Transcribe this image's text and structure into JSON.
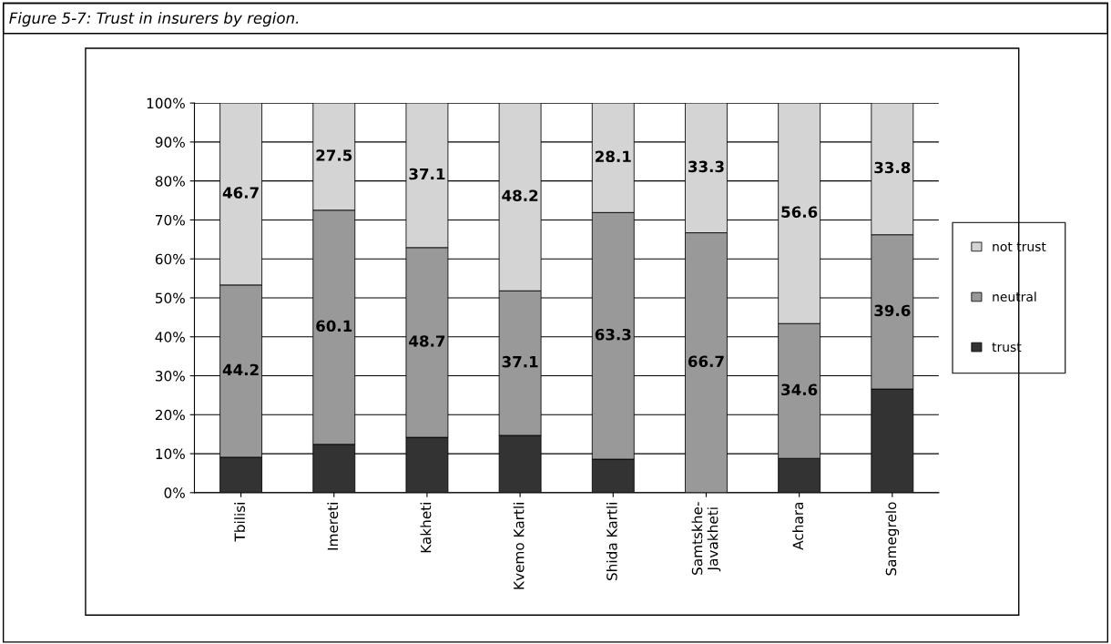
{
  "chart_data": {
    "type": "bar",
    "title": "Figure 5-7: Trust in insurers by region.",
    "stacked": true,
    "categories": [
      "Tbilisi",
      "Imereti",
      "Kakheti",
      "Kvemo Kartli",
      "Shida Kartli",
      "Samtskhe-\nJavakheti",
      "Achara",
      "Samegrelo"
    ],
    "series": [
      {
        "name": "trust",
        "color": "#333333",
        "values": [
          9.1,
          12.4,
          14.2,
          14.7,
          8.6,
          0,
          8.8,
          26.6
        ]
      },
      {
        "name": "neutral",
        "color": "#999999",
        "values": [
          44.2,
          60.1,
          48.7,
          37.1,
          63.3,
          66.7,
          34.6,
          39.6
        ],
        "value_labels": [
          "44.2",
          "60.1",
          "48.7",
          "37.1",
          "63.3",
          "66.7",
          "34.6",
          "39.6"
        ]
      },
      {
        "name": "not trust",
        "color": "#d4d4d4",
        "values": [
          46.7,
          27.5,
          37.1,
          48.2,
          28.1,
          33.3,
          56.6,
          33.8
        ],
        "value_labels": [
          "46.7",
          "27.5",
          "37.1",
          "48.2",
          "28.1",
          "33.3",
          "56.6",
          "33.8"
        ]
      }
    ],
    "ylim": [
      0,
      100
    ],
    "yticks": [
      {
        "value": 0,
        "label": "0%"
      },
      {
        "value": 10,
        "label": "10%"
      },
      {
        "value": 20,
        "label": "20%"
      },
      {
        "value": 30,
        "label": "30%"
      },
      {
        "value": 40,
        "label": "40%"
      },
      {
        "value": 50,
        "label": "50%"
      },
      {
        "value": 60,
        "label": "60%"
      },
      {
        "value": 70,
        "label": "70%"
      },
      {
        "value": 80,
        "label": "80%"
      },
      {
        "value": 90,
        "label": "90%"
      },
      {
        "value": 100,
        "label": "100%"
      }
    ],
    "grid": "y",
    "legend": "right"
  }
}
